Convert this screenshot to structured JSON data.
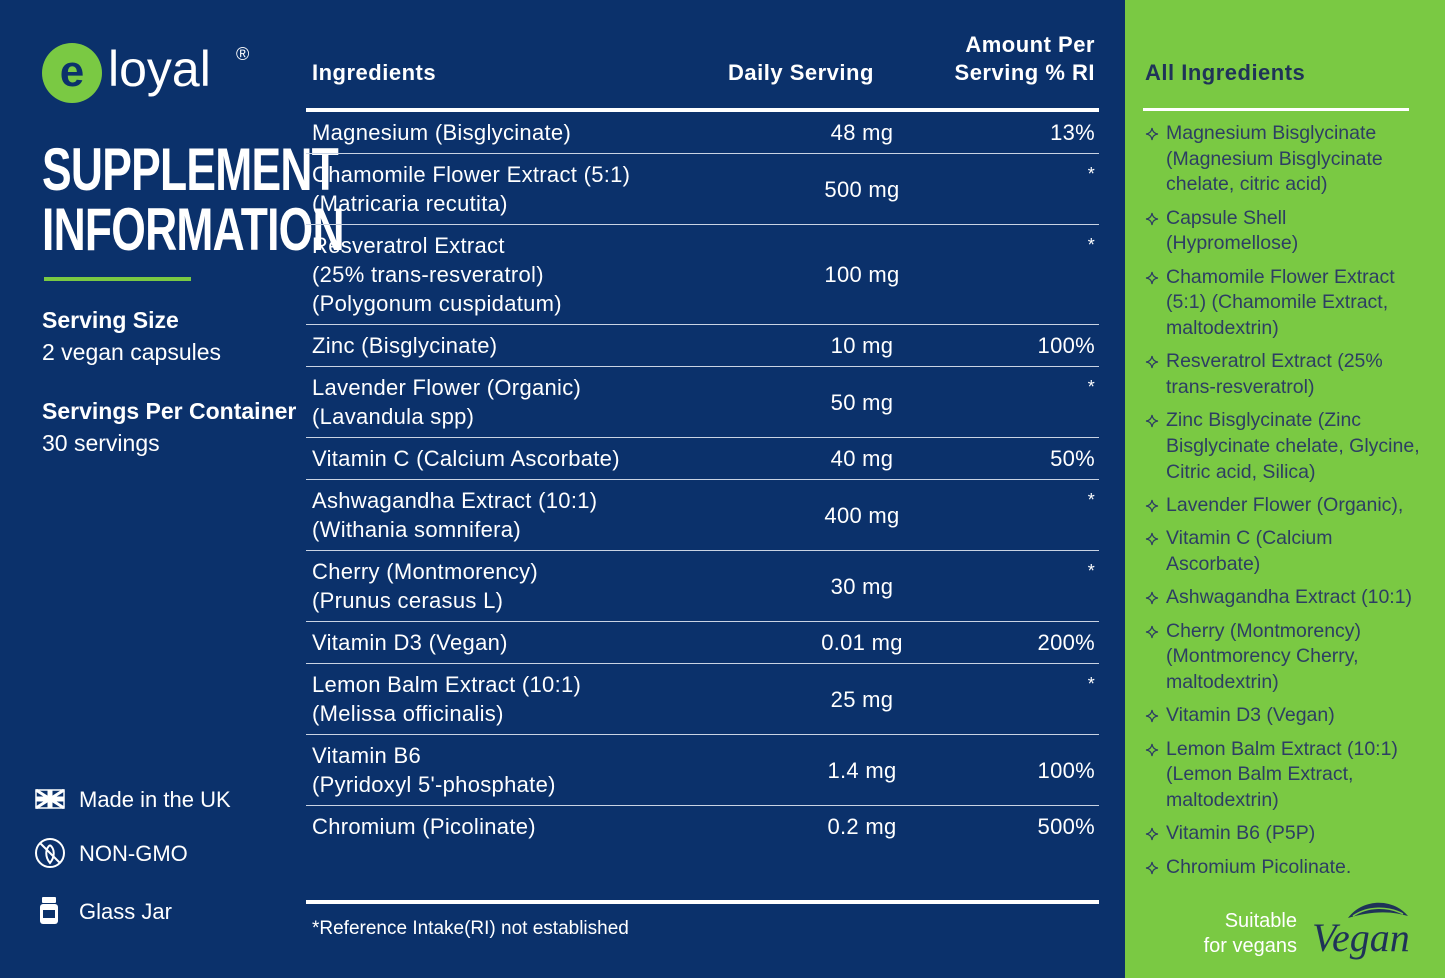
{
  "brand": {
    "mark": "e",
    "name": "loyal",
    "reg": "®"
  },
  "title": [
    "SUPPLEMENT",
    "INFORMATION"
  ],
  "serving": [
    {
      "label": "Serving Size",
      "value": "2 vegan capsules"
    },
    {
      "label": "Servings Per Container",
      "value": "30 servings"
    }
  ],
  "badges": [
    "Made in the UK",
    "NON-GMO",
    "Glass Jar"
  ],
  "table": {
    "headers": {
      "ingredients": "Ingredients",
      "daily": "Daily Serving",
      "ri": [
        "Amount Per",
        "Serving % RI"
      ]
    },
    "rows": [
      {
        "name": [
          "Magnesium (Bisglycinate)"
        ],
        "amount": "48 mg",
        "ri": "13%"
      },
      {
        "name": [
          "Chamomile Flower Extract (5:1)",
          "(Matricaria recutita)"
        ],
        "amount": "500 mg",
        "ri": "*"
      },
      {
        "name": [
          "Resveratrol Extract",
          "(25% trans-resveratrol)",
          "(Polygonum cuspidatum)"
        ],
        "amount": "100 mg",
        "ri": "*"
      },
      {
        "name": [
          "Zinc (Bisglycinate)"
        ],
        "amount": "10 mg",
        "ri": "100%"
      },
      {
        "name": [
          "Lavender Flower (Organic)",
          "(Lavandula spp)"
        ],
        "amount": "50 mg",
        "ri": "*"
      },
      {
        "name": [
          "Vitamin C (Calcium Ascorbate)"
        ],
        "amount": "40 mg",
        "ri": "50%"
      },
      {
        "name": [
          "Ashwagandha Extract (10:1)",
          "(Withania somnifera)"
        ],
        "amount": "400 mg",
        "ri": "*"
      },
      {
        "name": [
          "Cherry (Montmorency)",
          "(Prunus cerasus L)"
        ],
        "amount": "30 mg",
        "ri": "*"
      },
      {
        "name": [
          "Vitamin D3 (Vegan)"
        ],
        "amount": "0.01 mg",
        "ri": "200%"
      },
      {
        "name": [
          "Lemon Balm Extract (10:1)",
          "(Melissa officinalis)"
        ],
        "amount": "25 mg",
        "ri": "*"
      },
      {
        "name": [
          "Vitamin B6",
          "(Pyridoxyl 5'-phosphate)"
        ],
        "amount": "1.4 mg",
        "ri": "100%"
      },
      {
        "name": [
          "Chromium (Picolinate)"
        ],
        "amount": "0.2 mg",
        "ri": "500%"
      }
    ],
    "footnote": "*Reference Intake(RI) not established"
  },
  "all_ingredients": {
    "heading": "All Ingredients",
    "items": [
      "Magnesium Bisglycinate (Magnesium Bisglycinate chelate, citric acid)",
      "Capsule Shell (Hypromellose)",
      "Chamomile Flower Extract (5:1) (Chamomile Extract, maltodextrin)",
      "Resveratrol Extract (25% trans-resveratrol)",
      "Zinc Bisglycinate (Zinc Bisglycinate chelate, Glycine, Citric acid, Silica)",
      "Lavender Flower (Organic),",
      "Vitamin C (Calcium Ascorbate)",
      "Ashwagandha Extract (10:1)",
      "Cherry (Montmorency) (Montmorency Cherry, maltodextrin)",
      "Vitamin D3 (Vegan)",
      "Lemon Balm Extract (10:1) (Lemon Balm Extract, maltodextrin)",
      "Vitamin B6 (P5P)",
      "Chromium Picolinate."
    ]
  },
  "vegan": {
    "text": [
      "Suitable",
      "for vegans"
    ],
    "logo": "Vegan"
  }
}
